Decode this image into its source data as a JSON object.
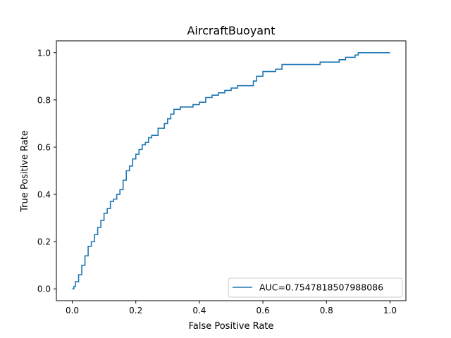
{
  "chart_data": {
    "type": "line",
    "title": "AircraftBuoyant",
    "xlabel": "False Positive Rate",
    "ylabel": "True Positive Rate",
    "xlim": [
      -0.05,
      1.05
    ],
    "ylim": [
      -0.05,
      1.05
    ],
    "xticks": [
      "0.0",
      "0.2",
      "0.4",
      "0.6",
      "0.8",
      "1.0"
    ],
    "yticks": [
      "0.0",
      "0.2",
      "0.4",
      "0.6",
      "0.8",
      "1.0"
    ],
    "grid": false,
    "legend_position": "lower-right",
    "series": [
      {
        "name": "AUC=0.7547818507988086",
        "color": "#1f77b4",
        "x": [
          0.0,
          0.005,
          0.01,
          0.02,
          0.03,
          0.04,
          0.05,
          0.06,
          0.07,
          0.08,
          0.09,
          0.1,
          0.11,
          0.12,
          0.13,
          0.14,
          0.15,
          0.16,
          0.17,
          0.18,
          0.19,
          0.2,
          0.21,
          0.22,
          0.23,
          0.24,
          0.25,
          0.27,
          0.29,
          0.3,
          0.31,
          0.32,
          0.34,
          0.36,
          0.38,
          0.4,
          0.42,
          0.44,
          0.46,
          0.48,
          0.5,
          0.52,
          0.55,
          0.57,
          0.58,
          0.6,
          0.62,
          0.64,
          0.66,
          0.68,
          0.72,
          0.75,
          0.78,
          0.82,
          0.84,
          0.86,
          0.89,
          0.9,
          0.95,
          1.0
        ],
        "y": [
          0.0,
          0.01,
          0.03,
          0.06,
          0.1,
          0.14,
          0.18,
          0.2,
          0.23,
          0.26,
          0.29,
          0.32,
          0.34,
          0.37,
          0.38,
          0.4,
          0.42,
          0.46,
          0.5,
          0.52,
          0.55,
          0.57,
          0.59,
          0.61,
          0.62,
          0.64,
          0.65,
          0.68,
          0.7,
          0.72,
          0.74,
          0.76,
          0.77,
          0.77,
          0.78,
          0.79,
          0.81,
          0.82,
          0.83,
          0.84,
          0.85,
          0.86,
          0.86,
          0.88,
          0.9,
          0.92,
          0.92,
          0.93,
          0.95,
          0.95,
          0.95,
          0.95,
          0.96,
          0.96,
          0.97,
          0.98,
          0.99,
          1.0,
          1.0,
          1.0
        ]
      }
    ]
  }
}
